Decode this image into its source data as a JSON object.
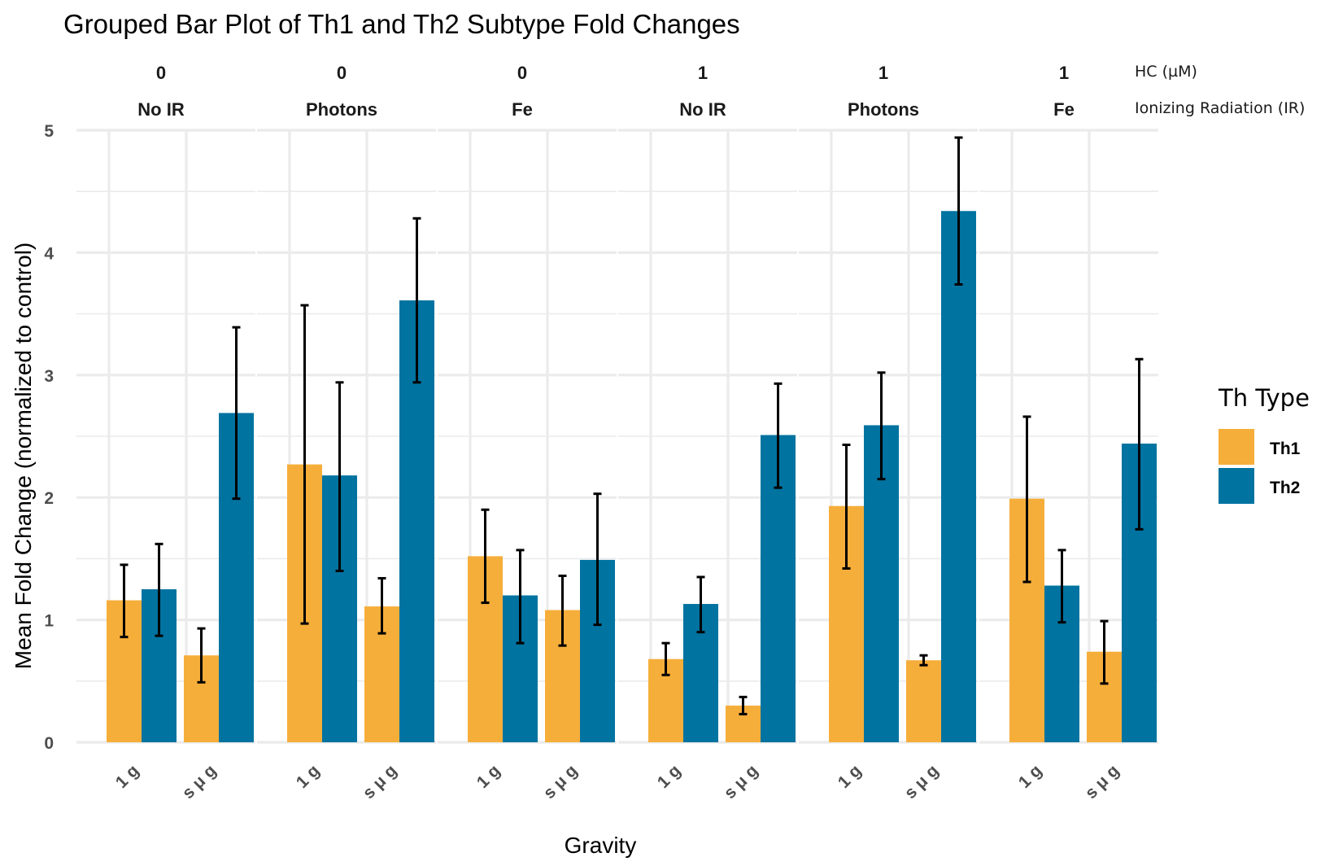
{
  "chart_data": {
    "type": "bar",
    "title": "Grouped Bar Plot of Th1 and Th2 Subtype Fold Changes",
    "xlabel": "Gravity",
    "ylabel": "Mean Fold Change (normalized to control)",
    "ylim": [
      0,
      5
    ],
    "yticks": [
      "0",
      "1",
      "2",
      "3",
      "4",
      "5"
    ],
    "grid": true,
    "facet_row_labels": [
      "HC (µM)",
      "Ionizing Radiation (IR)"
    ],
    "legend": {
      "title": "Th Type",
      "position": "right"
    },
    "series_names": [
      "Th1",
      "Th2"
    ],
    "colors": {
      "Th1": "#F6AE3A",
      "Th2": "#0073A0",
      "error_bar": "#000000",
      "grid": "#EBEBEB"
    },
    "categories": [
      "1 g",
      "s μ g"
    ],
    "facets": [
      {
        "hc": "0",
        "ir": "No IR",
        "groups": [
          {
            "gravity": "1 g",
            "Th1": {
              "mean": 1.16,
              "lo": 0.86,
              "hi": 1.45
            },
            "Th2": {
              "mean": 1.25,
              "lo": 0.87,
              "hi": 1.62
            }
          },
          {
            "gravity": "s μ g",
            "Th1": {
              "mean": 0.71,
              "lo": 0.49,
              "hi": 0.93
            },
            "Th2": {
              "mean": 2.69,
              "lo": 1.99,
              "hi": 3.39
            }
          }
        ]
      },
      {
        "hc": "0",
        "ir": "Photons",
        "groups": [
          {
            "gravity": "1 g",
            "Th1": {
              "mean": 2.27,
              "lo": 0.97,
              "hi": 3.57
            },
            "Th2": {
              "mean": 2.18,
              "lo": 1.4,
              "hi": 2.94
            }
          },
          {
            "gravity": "s μ g",
            "Th1": {
              "mean": 1.11,
              "lo": 0.89,
              "hi": 1.34
            },
            "Th2": {
              "mean": 3.61,
              "lo": 2.94,
              "hi": 4.28
            }
          }
        ]
      },
      {
        "hc": "0",
        "ir": "Fe",
        "groups": [
          {
            "gravity": "1 g",
            "Th1": {
              "mean": 1.52,
              "lo": 1.14,
              "hi": 1.9
            },
            "Th2": {
              "mean": 1.2,
              "lo": 0.81,
              "hi": 1.57
            }
          },
          {
            "gravity": "s μ g",
            "Th1": {
              "mean": 1.08,
              "lo": 0.79,
              "hi": 1.36
            },
            "Th2": {
              "mean": 1.49,
              "lo": 0.96,
              "hi": 2.03
            }
          }
        ]
      },
      {
        "hc": "1",
        "ir": "No IR",
        "groups": [
          {
            "gravity": "1 g",
            "Th1": {
              "mean": 0.68,
              "lo": 0.55,
              "hi": 0.81
            },
            "Th2": {
              "mean": 1.13,
              "lo": 0.9,
              "hi": 1.35
            }
          },
          {
            "gravity": "s μ g",
            "Th1": {
              "mean": 0.3,
              "lo": 0.23,
              "hi": 0.37
            },
            "Th2": {
              "mean": 2.51,
              "lo": 2.08,
              "hi": 2.93
            }
          }
        ]
      },
      {
        "hc": "1",
        "ir": "Photons",
        "groups": [
          {
            "gravity": "1 g",
            "Th1": {
              "mean": 1.93,
              "lo": 1.42,
              "hi": 2.43
            },
            "Th2": {
              "mean": 2.59,
              "lo": 2.15,
              "hi": 3.02
            }
          },
          {
            "gravity": "s μ g",
            "Th1": {
              "mean": 0.67,
              "lo": 0.63,
              "hi": 0.71
            },
            "Th2": {
              "mean": 4.34,
              "lo": 3.74,
              "hi": 4.94
            }
          }
        ]
      },
      {
        "hc": "1",
        "ir": "Fe",
        "groups": [
          {
            "gravity": "1 g",
            "Th1": {
              "mean": 1.99,
              "lo": 1.31,
              "hi": 2.66
            },
            "Th2": {
              "mean": 1.28,
              "lo": 0.98,
              "hi": 1.57
            }
          },
          {
            "gravity": "s μ g",
            "Th1": {
              "mean": 0.74,
              "lo": 0.48,
              "hi": 0.99
            },
            "Th2": {
              "mean": 2.44,
              "lo": 1.74,
              "hi": 3.13
            }
          }
        ]
      }
    ]
  }
}
